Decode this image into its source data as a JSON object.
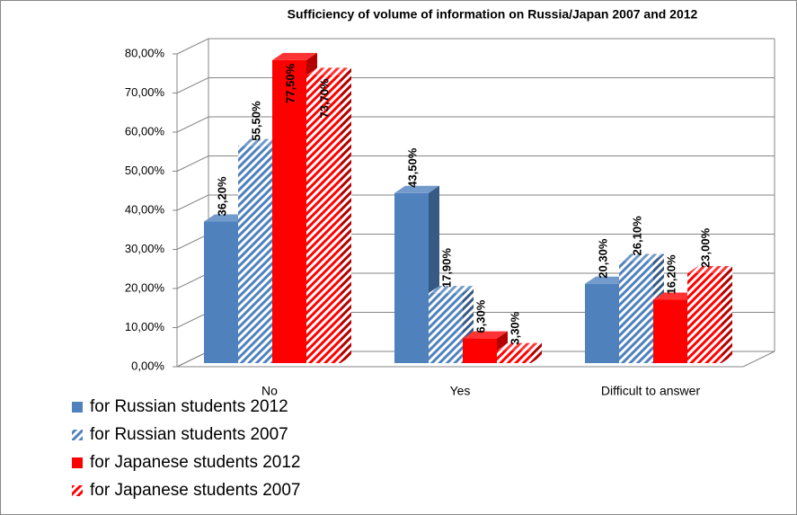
{
  "chart_data": {
    "type": "bar3d",
    "title": "Sufficiency of volume of information on Russia/Japan 2007 and 2012",
    "categories": [
      "No",
      "Yes",
      "Difficult to answer"
    ],
    "series": [
      {
        "name": "for Russian students 2012",
        "color": "#4f81bd",
        "pattern": "solid",
        "values": [
          36.2,
          43.5,
          20.3
        ],
        "value_labels": [
          "36,20%",
          "43,50%",
          "20,30%"
        ]
      },
      {
        "name": "for Russian students 2007",
        "color": "#4f81bd",
        "pattern": "hatch",
        "values": [
          55.5,
          17.9,
          26.1
        ],
        "value_labels": [
          "55,50%",
          "17,90%",
          "26,10%"
        ]
      },
      {
        "name": "for Japanese students 2012",
        "color": "#ff0000",
        "pattern": "solid",
        "values": [
          77.5,
          6.3,
          16.2
        ],
        "value_labels": [
          "77,50%",
          "6,30%",
          "16,20%"
        ]
      },
      {
        "name": "for Japanese students  2007",
        "color": "#ff0000",
        "pattern": "hatch",
        "values": [
          73.7,
          3.3,
          23.0
        ],
        "value_labels": [
          "73,70%",
          "3,30%",
          "23,00%"
        ]
      }
    ],
    "ylim": [
      0,
      80
    ],
    "yticks": [
      {
        "value": 0,
        "label": "0,00%"
      },
      {
        "value": 10,
        "label": "10,00%"
      },
      {
        "value": 20,
        "label": "20,00%"
      },
      {
        "value": 30,
        "label": "30,00%"
      },
      {
        "value": 40,
        "label": "40,00%"
      },
      {
        "value": 50,
        "label": "50,00%"
      },
      {
        "value": 60,
        "label": "60,00%"
      },
      {
        "value": 70,
        "label": "70,00%"
      },
      {
        "value": 80,
        "label": "80,00%"
      }
    ],
    "grid": true,
    "legend": "bottom-left"
  }
}
